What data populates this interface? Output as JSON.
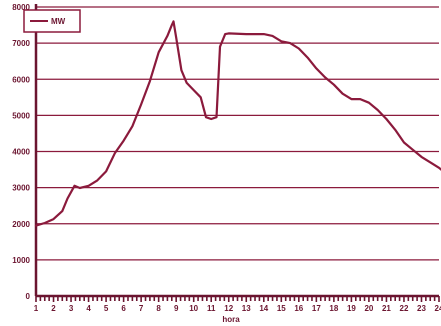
{
  "chart_data": {
    "type": "line",
    "title": "",
    "xlabel": "hora",
    "ylabel": "",
    "xlim": [
      1,
      24
    ],
    "ylim": [
      0,
      8000
    ],
    "grid": "horizontal",
    "legend_position": "top-left",
    "colors": {
      "line": "#8b1a3c",
      "grid": "#8b1a3c",
      "axis": "#6b1530",
      "background": "#ffffff"
    },
    "x_ticks": [
      "1",
      "2",
      "3",
      "4",
      "5",
      "6",
      "7",
      "8",
      "9",
      "10",
      "11",
      "12",
      "13",
      "14",
      "15",
      "16",
      "17",
      "18",
      "19",
      "20",
      "21",
      "22",
      "23",
      "24"
    ],
    "y_ticks": [
      "0",
      "1000",
      "2000",
      "3000",
      "4000",
      "5000",
      "6000",
      "7000",
      "8000"
    ],
    "series": [
      {
        "name": "MW",
        "points": [
          [
            1.0,
            1950
          ],
          [
            1.5,
            2020
          ],
          [
            2.0,
            2130
          ],
          [
            2.5,
            2350
          ],
          [
            2.8,
            2700
          ],
          [
            3.2,
            3050
          ],
          [
            3.5,
            2990
          ],
          [
            4.0,
            3050
          ],
          [
            4.5,
            3200
          ],
          [
            5.0,
            3450
          ],
          [
            5.5,
            3950
          ],
          [
            6.0,
            4300
          ],
          [
            6.5,
            4700
          ],
          [
            7.0,
            5300
          ],
          [
            7.5,
            5950
          ],
          [
            8.0,
            6750
          ],
          [
            8.5,
            7200
          ],
          [
            8.75,
            7500
          ],
          [
            8.85,
            7600
          ],
          [
            9.0,
            7150
          ],
          [
            9.3,
            6250
          ],
          [
            9.6,
            5900
          ],
          [
            10.0,
            5700
          ],
          [
            10.4,
            5500
          ],
          [
            10.7,
            4950
          ],
          [
            11.0,
            4900
          ],
          [
            11.3,
            4950
          ],
          [
            11.5,
            6900
          ],
          [
            11.8,
            7250
          ],
          [
            12.0,
            7270
          ],
          [
            13.0,
            7250
          ],
          [
            14.0,
            7250
          ],
          [
            14.5,
            7200
          ],
          [
            15.0,
            7050
          ],
          [
            15.5,
            7000
          ],
          [
            16.0,
            6850
          ],
          [
            16.5,
            6600
          ],
          [
            17.0,
            6300
          ],
          [
            17.5,
            6050
          ],
          [
            18.0,
            5850
          ],
          [
            18.5,
            5600
          ],
          [
            19.0,
            5450
          ],
          [
            19.5,
            5450
          ],
          [
            20.0,
            5350
          ],
          [
            20.5,
            5150
          ],
          [
            21.0,
            4900
          ],
          [
            21.5,
            4600
          ],
          [
            22.0,
            4250
          ],
          [
            22.5,
            4050
          ],
          [
            23.0,
            3850
          ],
          [
            23.5,
            3700
          ],
          [
            24.0,
            3550
          ],
          [
            24.3,
            3430
          ]
        ]
      }
    ]
  }
}
